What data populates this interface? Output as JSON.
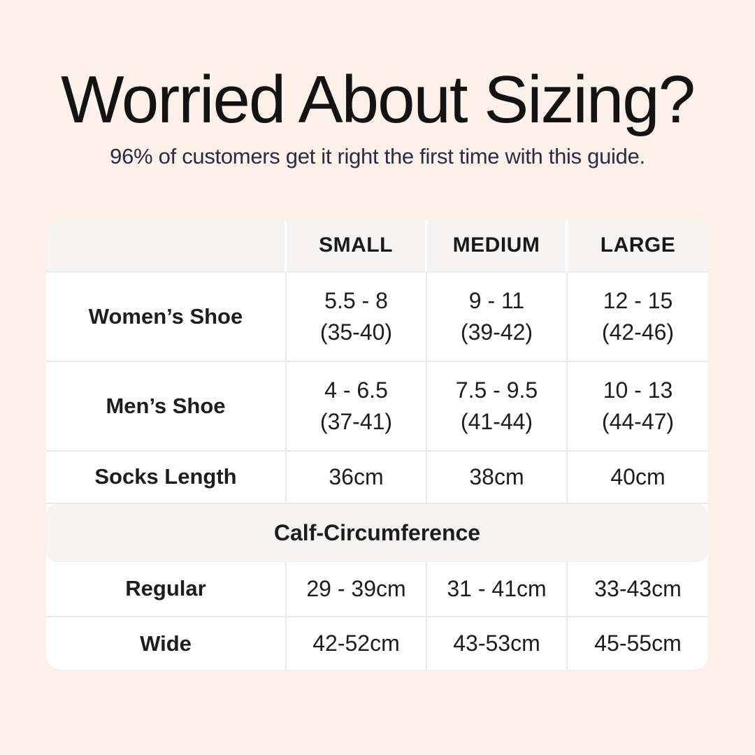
{
  "page": {
    "background_color": "#fdf1ea",
    "title": "Worried About Sizing?",
    "title_color": "#131313",
    "subtitle": "96% of customers get it right the first time with this guide.",
    "subtitle_color": "#2b2b45"
  },
  "table": {
    "card_background": "#ffffff",
    "band_background": "#f5f4f2",
    "divider_color": "#eceae8",
    "headers": {
      "col0": "",
      "col1": "SMALL",
      "col2": "MEDIUM",
      "col3": "LARGE"
    },
    "rows": [
      {
        "label": "Women’s Shoe",
        "small_line1": "5.5 - 8",
        "small_line2": "(35-40)",
        "medium_line1": "9 - 11",
        "medium_line2": "(39-42)",
        "large_line1": "12 - 15",
        "large_line2": "(42-46)"
      },
      {
        "label": "Men’s Shoe",
        "small_line1": "4 - 6.5",
        "small_line2": "(37-41)",
        "medium_line1": "7.5 - 9.5",
        "medium_line2": "(41-44)",
        "large_line1": "10 - 13",
        "large_line2": "(44-47)"
      },
      {
        "label": "Socks Length",
        "small": "36cm",
        "medium": "38cm",
        "large": "40cm"
      }
    ],
    "section_label": "Calf-Circumference",
    "section_rows": [
      {
        "label": "Regular",
        "small": "29 - 39cm",
        "medium": "31 - 41cm",
        "large": "33-43cm"
      },
      {
        "label": "Wide",
        "small": "42-52cm",
        "medium": "43-53cm",
        "large": "45-55cm"
      }
    ]
  }
}
